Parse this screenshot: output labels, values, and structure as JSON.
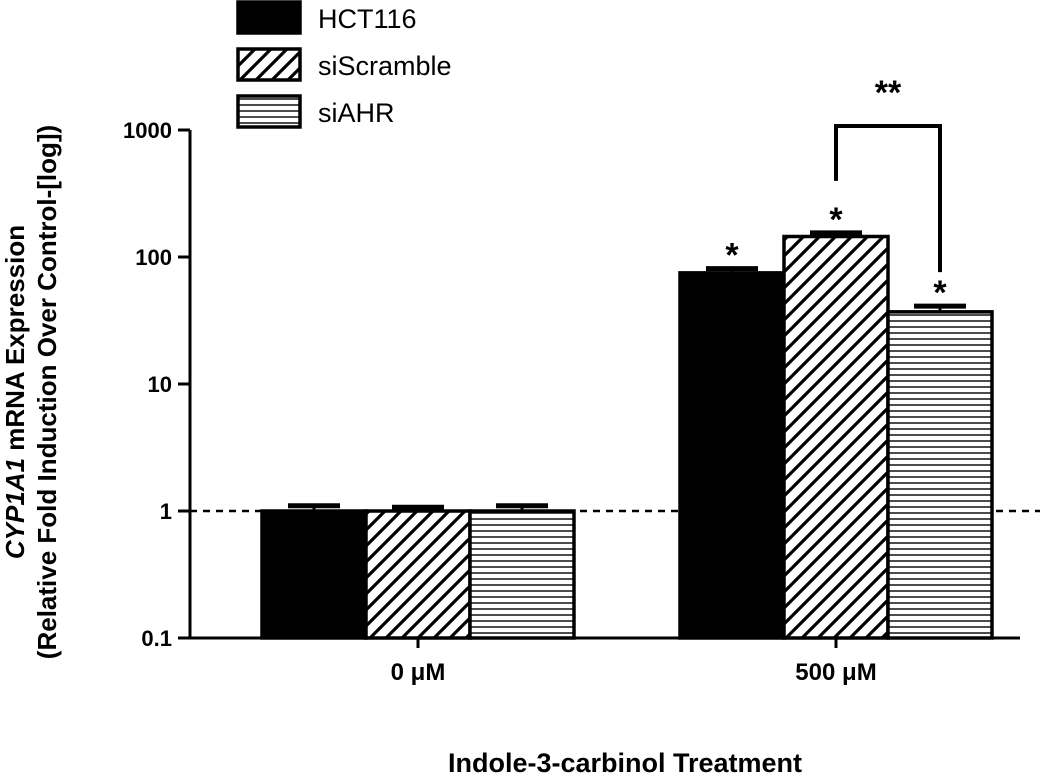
{
  "chart_data": {
    "type": "bar",
    "scale_y": "log",
    "categories": [
      "0 μM",
      "500 μM"
    ],
    "series": [
      {
        "name": "HCT116",
        "values": [
          1.0,
          75
        ],
        "errors": [
          0.1,
          6
        ],
        "pattern": "solid"
      },
      {
        "name": "siScramble",
        "values": [
          1.0,
          145
        ],
        "errors": [
          0.07,
          10
        ],
        "pattern": "diagonal"
      },
      {
        "name": "siAHR",
        "values": [
          1.0,
          37
        ],
        "errors": [
          0.1,
          4
        ],
        "pattern": "horizontal"
      }
    ],
    "ylim": [
      0.1,
      1000
    ],
    "yticks": [
      0.1,
      1,
      10,
      100,
      1000
    ],
    "ytick_labels": [
      "0.1",
      "1",
      "10",
      "100",
      "1000"
    ],
    "reference_line": 1,
    "ylabel_line1": "CYP1A1 mRNA Expression",
    "ylabel_line1_italic": "CYP1A1",
    "ylabel_line1_rest": " mRNA Expression",
    "ylabel_line2": "(Relative  Fold Induction Over Control-[log])",
    "xlabel": "Indole-3-carbinol Treatment",
    "legend_position": "top-left",
    "significance": {
      "single": "*",
      "double": "**",
      "single_marked_bars": [
        [
          1,
          0
        ],
        [
          1,
          1
        ],
        [
          1,
          2
        ]
      ],
      "bracket_between_series": [
        1,
        2
      ],
      "bracket_category": 1
    },
    "colors": {
      "bar_fill": "#000000",
      "background": "#ffffff",
      "stroke": "#000000"
    }
  }
}
